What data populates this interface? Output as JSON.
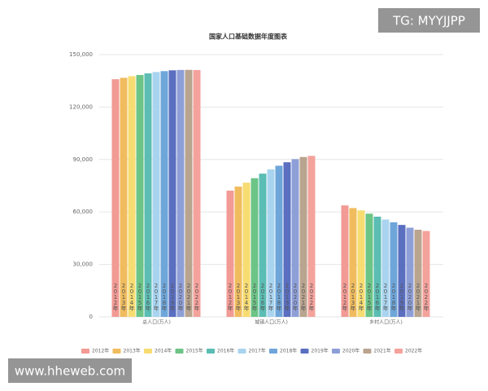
{
  "chart_data": {
    "type": "bar",
    "title": "国家人口基础数据年度图表",
    "categories": [
      "总人口(万人)",
      "城镇人口(万人)",
      "乡村人口(万人)"
    ],
    "series": [
      {
        "name": "2012年",
        "color": "#f29a94",
        "values": [
          135922,
          72175,
          63747
        ]
      },
      {
        "name": "2013年",
        "color": "#f0bc5e",
        "values": [
          136726,
          74502,
          62224
        ]
      },
      {
        "name": "2014年",
        "color": "#f7dc72",
        "values": [
          137646,
          76738,
          60908
        ]
      },
      {
        "name": "2015年",
        "color": "#6cc487",
        "values": [
          138326,
          79302,
          59024
        ]
      },
      {
        "name": "2016年",
        "color": "#5bbdb3",
        "values": [
          139232,
          81924,
          57308
        ]
      },
      {
        "name": "2017年",
        "color": "#a9d4ef",
        "values": [
          140011,
          84343,
          55668
        ]
      },
      {
        "name": "2018年",
        "color": "#6ea6da",
        "values": [
          140541,
          86433,
          54108
        ]
      },
      {
        "name": "2019年",
        "color": "#5a6fc0",
        "values": [
          141008,
          88426,
          52582
        ]
      },
      {
        "name": "2020年",
        "color": "#8e9fd8",
        "values": [
          141212,
          90220,
          50992
        ]
      },
      {
        "name": "2021年",
        "color": "#b9a48f",
        "values": [
          141260,
          91425,
          49835
        ]
      },
      {
        "name": "2022年",
        "color": "#f4a29c",
        "values": [
          141175,
          92071,
          49104
        ]
      }
    ],
    "ylim": [
      0,
      150000
    ],
    "yticks": [
      0,
      {
        "value": 30000,
        "label": "30,000"
      },
      {
        "value": 60000,
        "label": "60,000"
      },
      {
        "value": 90000,
        "label": "90,000"
      },
      {
        "value": 120000,
        "label": "120,000"
      },
      {
        "value": 150000,
        "label": "150,000"
      }
    ],
    "grid": true
  },
  "watermarks": [
    "TG: MYYJJPP",
    "www.hheweb.com"
  ]
}
